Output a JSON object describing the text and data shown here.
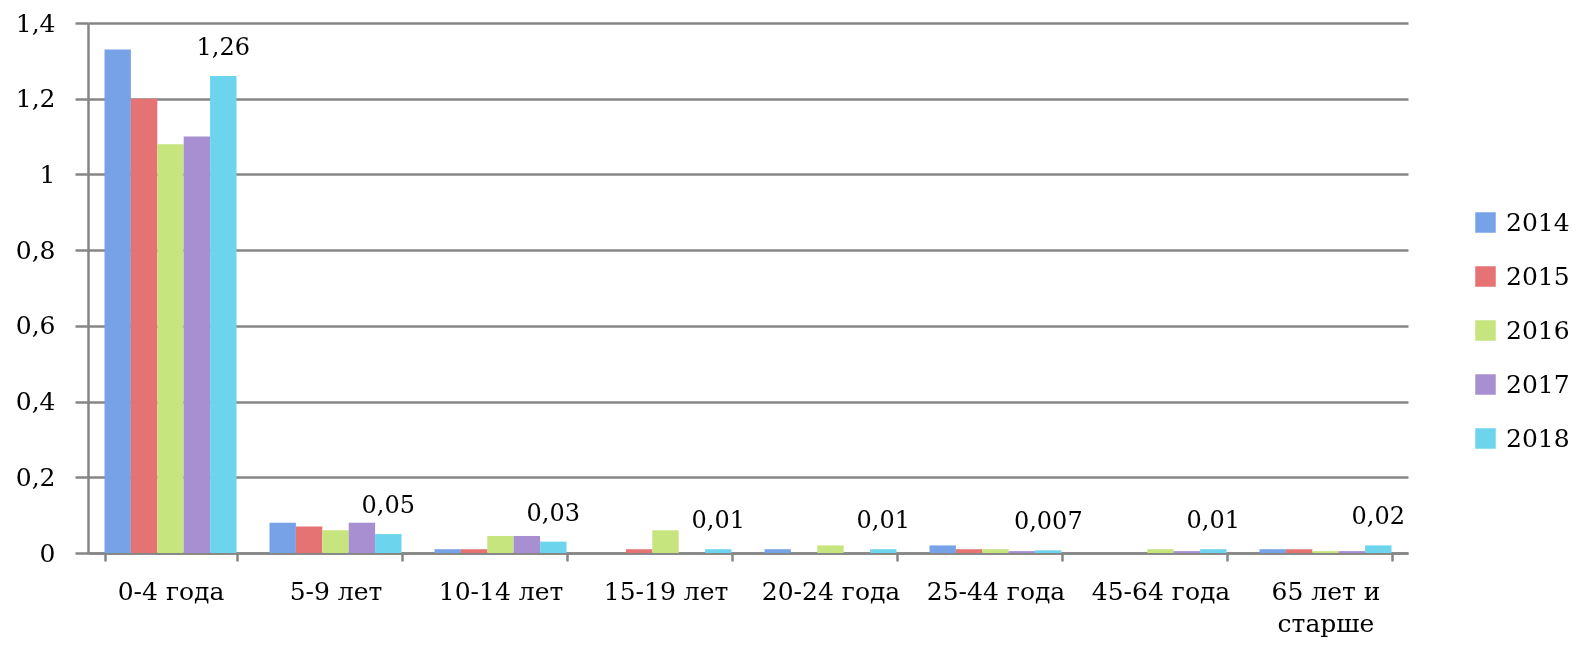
{
  "chart_data": {
    "type": "bar",
    "categories": [
      "0-4 года",
      "5-9 лет",
      "10-14 лет",
      "15-19 лет",
      "20-24 года",
      "25-44 года",
      "45-64 года",
      "65 лет и старше"
    ],
    "series": [
      {
        "name": "2014",
        "color": "#78a2e8",
        "values": [
          1.33,
          0.08,
          0.01,
          null,
          0.01,
          0.02,
          null,
          0.01
        ]
      },
      {
        "name": "2015",
        "color": "#e57373",
        "values": [
          1.2,
          0.07,
          0.01,
          0.01,
          null,
          0.01,
          null,
          0.01
        ]
      },
      {
        "name": "2016",
        "color": "#c6e57e",
        "values": [
          1.08,
          0.06,
          0.045,
          0.06,
          0.02,
          0.01,
          0.01,
          0.005
        ]
      },
      {
        "name": "2017",
        "color": "#a88fd1",
        "values": [
          1.1,
          0.08,
          0.045,
          null,
          null,
          0.005,
          0.005,
          0.005
        ]
      },
      {
        "name": "2018",
        "color": "#6cd4ec",
        "values": [
          1.26,
          0.05,
          0.03,
          0.01,
          0.01,
          0.007,
          0.01,
          0.02
        ],
        "value_labels": [
          "1,26",
          "0,05",
          "0,03",
          "0,01",
          "0,01",
          "0,007",
          "0,01",
          "0,02"
        ]
      }
    ],
    "ylim": [
      0,
      1.4
    ],
    "yticks": [
      0,
      {
        "value": 0.2,
        "label": "0,2"
      },
      {
        "value": 0.4,
        "label": "0,4"
      },
      {
        "value": 0.6,
        "label": "0,6"
      },
      {
        "value": 0.8,
        "label": "0,8"
      },
      1,
      {
        "value": 1.2,
        "label": "1,2"
      },
      {
        "value": 1.4,
        "label": "1,4"
      }
    ],
    "grid": "y",
    "legend": "right"
  }
}
